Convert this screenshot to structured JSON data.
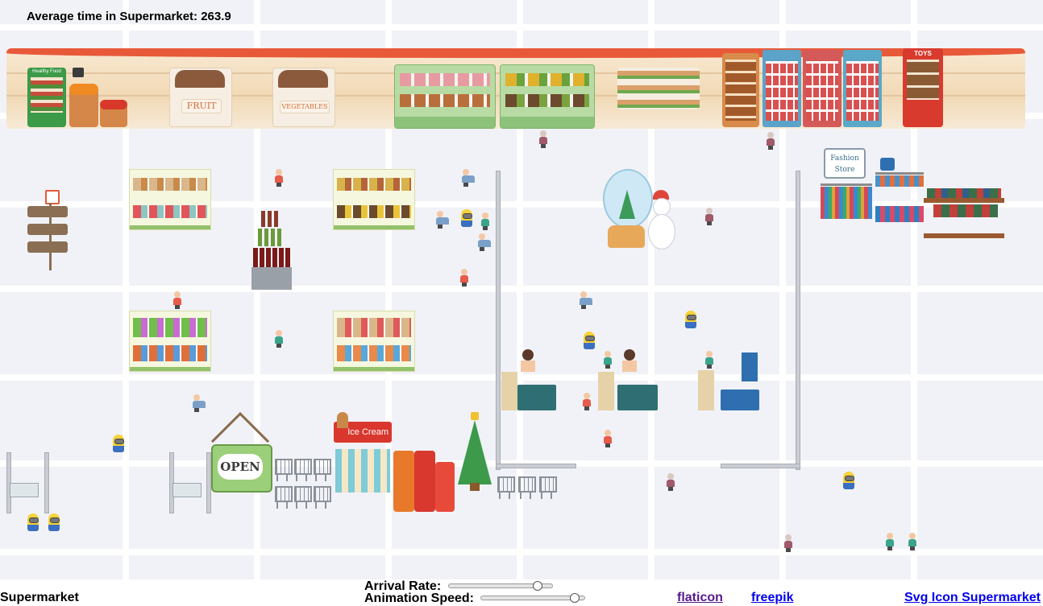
{
  "stats": {
    "average_time_label": "Average time in Supermarket: 263.9"
  },
  "signs": {
    "fruit": "FRUIT",
    "vegetables": "VEGETABLES",
    "toys": "TOYS",
    "healthy_food": "Healthy Food",
    "fashion_store": "Fashion Store",
    "ice_cream": "Ice Cream",
    "open": "OPEN"
  },
  "controls": {
    "arrival_rate_label": "Arrival Rate:",
    "arrival_rate_value": 0.9,
    "animation_speed_label": "Animation Speed:",
    "animation_speed_value": 0.95
  },
  "footer": {
    "title": "Supermarket",
    "links": [
      "flaticon",
      "freepik",
      "Svg Icon Supermarket"
    ]
  },
  "colors": {
    "wall_trim": "#e8593a",
    "link_visited": "#551a8b",
    "link": "#0000ee",
    "counter": "#2f6f73"
  }
}
